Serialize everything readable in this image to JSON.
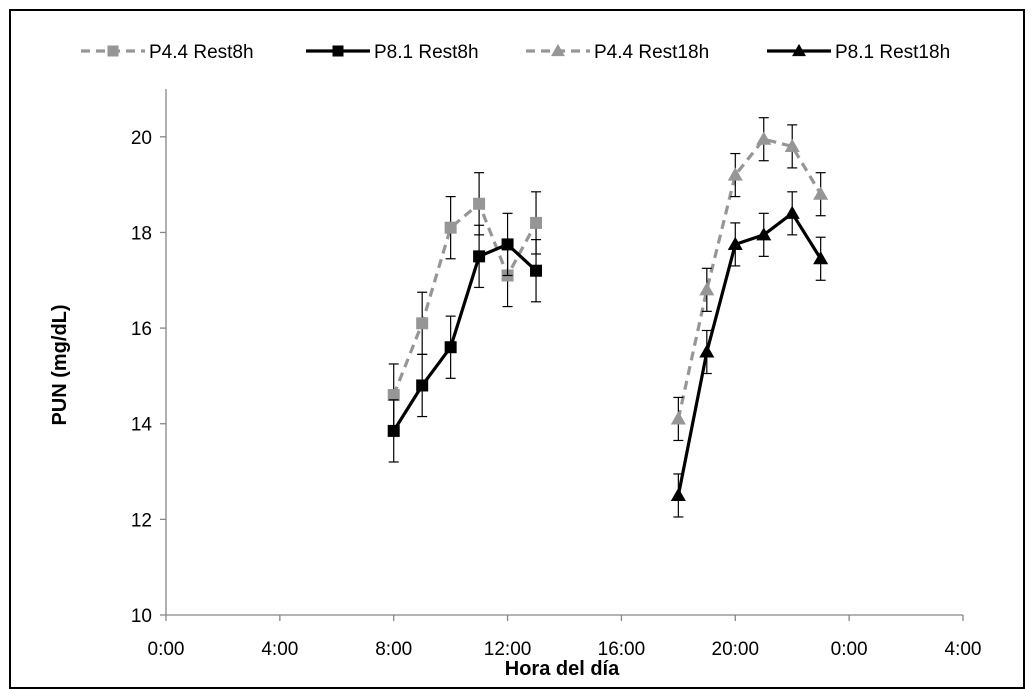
{
  "chart_data": {
    "type": "line",
    "title": "",
    "xlabel": "Hora del día",
    "ylabel": "PUN (mg/dL)",
    "x_ticks": [
      "0:00",
      "4:00",
      "8:00",
      "12:00",
      "16:00",
      "20:00",
      "0:00",
      "4:00"
    ],
    "x_range_hours": [
      0,
      28
    ],
    "y_ticks": [
      "10",
      "12",
      "14",
      "16",
      "18",
      "20"
    ],
    "ylim": [
      10,
      21
    ],
    "legend_position": "top",
    "error_bars": true,
    "series": [
      {
        "name": "P4.4 Rest8h",
        "color": "#969696",
        "dash": true,
        "marker": "square",
        "x": [
          8,
          9,
          10,
          11,
          12,
          13
        ],
        "y": [
          14.6,
          16.1,
          18.1,
          18.6,
          17.1,
          18.2
        ],
        "err": [
          0.65,
          0.65,
          0.65,
          0.65,
          0.65,
          0.65
        ]
      },
      {
        "name": "P8.1 Rest8h",
        "color": "#000000",
        "dash": false,
        "marker": "square",
        "x": [
          8,
          9,
          10,
          11,
          12,
          13
        ],
        "y": [
          13.85,
          14.8,
          15.6,
          17.5,
          17.75,
          17.2
        ],
        "err": [
          0.65,
          0.65,
          0.65,
          0.65,
          0.65,
          0.65
        ]
      },
      {
        "name": "P4.4 Rest18h",
        "color": "#969696",
        "dash": true,
        "marker": "triangle",
        "x": [
          18,
          19,
          20,
          21,
          22,
          23
        ],
        "y": [
          14.1,
          16.8,
          19.2,
          19.95,
          19.8,
          18.8
        ],
        "err": [
          0.45,
          0.45,
          0.45,
          0.45,
          0.45,
          0.45
        ]
      },
      {
        "name": "P8.1 Rest18h",
        "color": "#000000",
        "dash": false,
        "marker": "triangle",
        "x": [
          18,
          19,
          20,
          21,
          22,
          23
        ],
        "y": [
          12.5,
          15.5,
          17.75,
          17.95,
          18.4,
          17.45
        ],
        "err": [
          0.45,
          0.45,
          0.45,
          0.45,
          0.45,
          0.45
        ]
      }
    ]
  }
}
